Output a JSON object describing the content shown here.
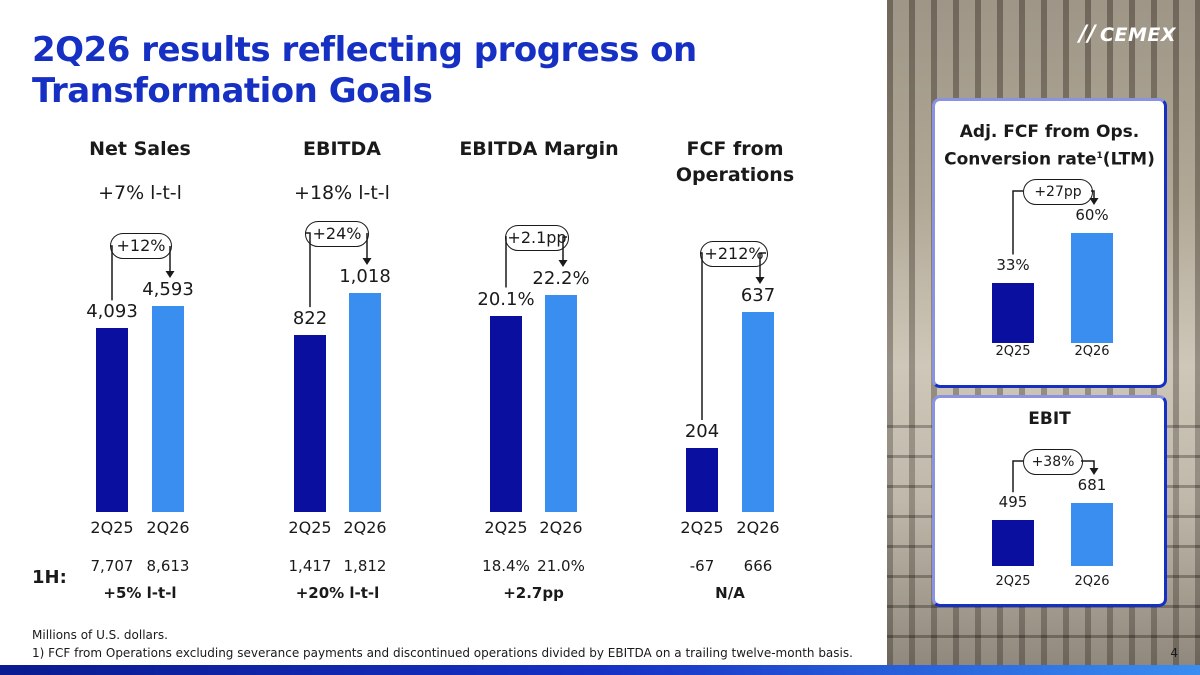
{
  "title": "2Q26 results reflecting progress on Transformation Goals",
  "logo_text": "CEMEX",
  "colors": {
    "brand_blue": "#1630c4",
    "bar_dark": "#0a0fa0",
    "bar_light": "#3a8ef0"
  },
  "h1_label": "1H:",
  "chart_data": [
    {
      "type": "bar",
      "title": "Net Sales",
      "subtitle": "+7% l-t-l",
      "categories": [
        "2Q25",
        "2Q26"
      ],
      "values": [
        4093,
        4593
      ],
      "value_labels": [
        "4,093",
        "4,593"
      ],
      "change": "+12%",
      "h1_values": [
        "7,707",
        "8,613"
      ],
      "h1_change": "+5% l-t-l"
    },
    {
      "type": "bar",
      "title": "EBITDA",
      "subtitle": "+18% l-t-l",
      "categories": [
        "2Q25",
        "2Q26"
      ],
      "values": [
        822,
        1018
      ],
      "value_labels": [
        "822",
        "1,018"
      ],
      "change": "+24%",
      "h1_values": [
        "1,417",
        "1,812"
      ],
      "h1_change": "+20% l-t-l"
    },
    {
      "type": "bar",
      "title": "EBITDA Margin",
      "subtitle": "",
      "categories": [
        "2Q25",
        "2Q26"
      ],
      "values": [
        20.1,
        22.2
      ],
      "value_labels": [
        "20.1%",
        "22.2%"
      ],
      "change": "+2.1pp",
      "h1_values": [
        "18.4%",
        "21.0%"
      ],
      "h1_change": "+2.7pp"
    },
    {
      "type": "bar",
      "title": "FCF from Operations",
      "subtitle": "",
      "categories": [
        "2Q25",
        "2Q26"
      ],
      "values": [
        204,
        637
      ],
      "value_labels": [
        "204",
        "637"
      ],
      "change": "+212%",
      "h1_values": [
        "-67",
        "666"
      ],
      "h1_change": "N/A"
    },
    {
      "type": "bar",
      "title": "Adj. FCF from Ops. Conversion rate",
      "title_note": "1",
      "title_suffix": "(LTM)",
      "categories": [
        "2Q25",
        "2Q26"
      ],
      "values": [
        33,
        60
      ],
      "value_labels": [
        "33%",
        "60%"
      ],
      "change": "+27pp"
    },
    {
      "type": "bar",
      "title": "EBIT",
      "categories": [
        "2Q25",
        "2Q26"
      ],
      "values": [
        495,
        681
      ],
      "value_labels": [
        "495",
        "681"
      ],
      "change": "+38%"
    }
  ],
  "footnotes": [
    "Millions of U.S. dollars.",
    "1) FCF from Operations excluding severance payments and discontinued operations divided by EBITDA on a trailing twelve-month basis."
  ],
  "page_number": "4"
}
